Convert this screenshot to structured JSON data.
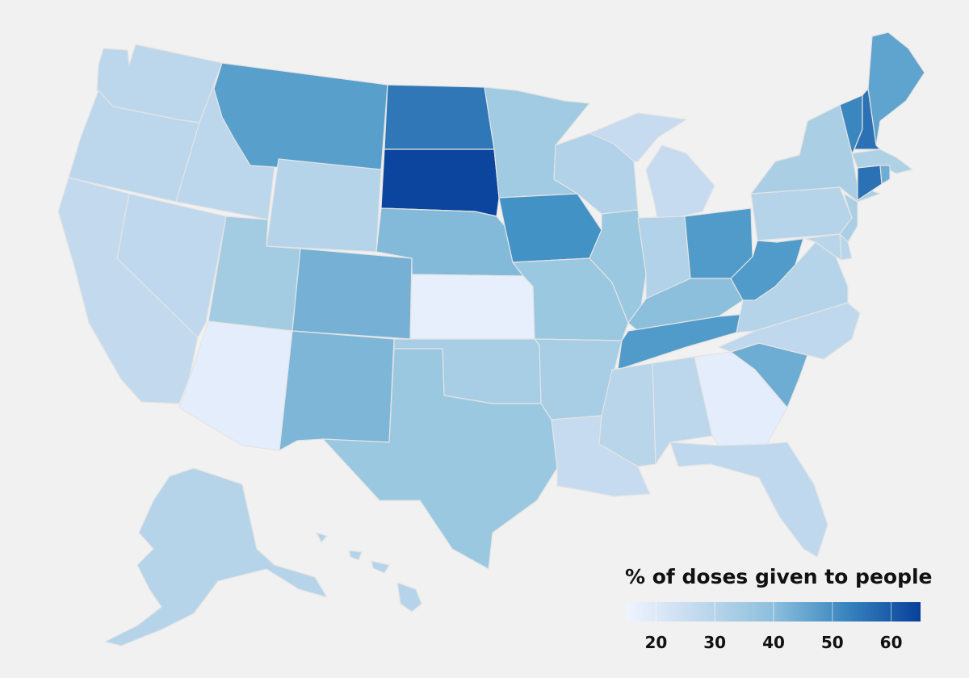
{
  "legend": {
    "title": "% of doses given to people",
    "domain": [
      15,
      65
    ],
    "ticks": [
      "20",
      "30",
      "40",
      "50",
      "60"
    ],
    "tick_values": [
      20,
      30,
      40,
      50,
      60
    ],
    "color_low": "#eef4ff",
    "color_high": "#08409a"
  },
  "chart_data": {
    "type": "choropleth",
    "value_label": "% of doses given to people",
    "values": {
      "WA": 29,
      "OR": 29,
      "CA": 27,
      "ID": 29,
      "NV": 28,
      "AZ": 18,
      "UT": 36,
      "MT": 47,
      "WY": 31,
      "CO": 43,
      "NM": 42,
      "ND": 55,
      "SD": 64,
      "NE": 41,
      "KS": 17,
      "OK": 35,
      "TX": 38,
      "MN": 37,
      "IA": 50,
      "MO": 38,
      "AR": 35,
      "LA": 26,
      "WI": 32,
      "IL": 38,
      "MI": 26,
      "IN": 32,
      "OH": 48,
      "KY": 40,
      "TN": 48,
      "MS": 30,
      "AL": 29,
      "GA": 18,
      "FL": 28,
      "SC": 44,
      "NC": 28,
      "VA": 31,
      "WV": 48,
      "PA": 31,
      "NY": 34,
      "ME": 46,
      "VT": 52,
      "NH": 56,
      "MA": 33,
      "CT": 56,
      "RI": 44,
      "NJ": 34,
      "DE": 30,
      "MD": 30,
      "AK": 31,
      "HI": 31
    }
  }
}
